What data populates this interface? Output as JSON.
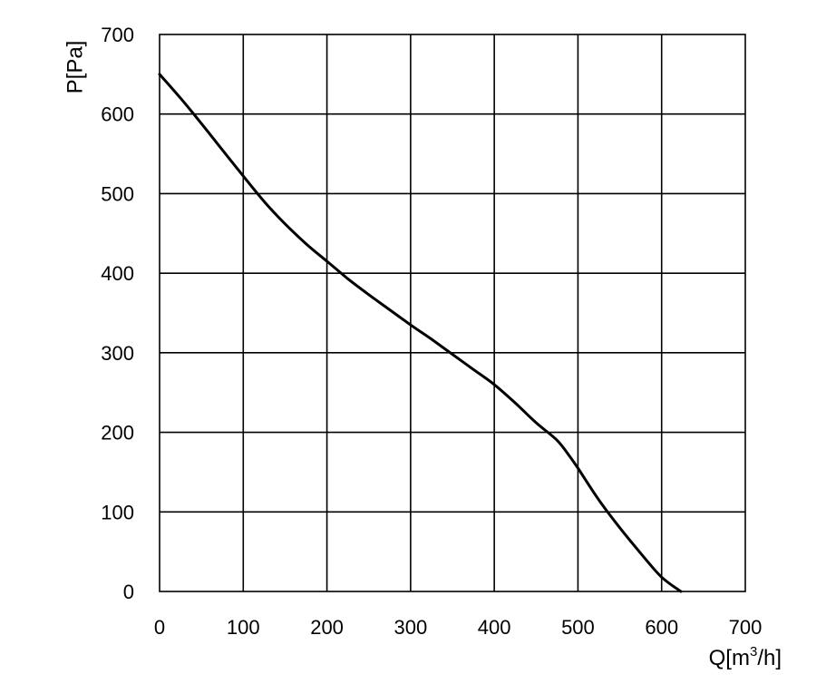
{
  "chart_data": {
    "type": "line",
    "xlabel_text": "Q[m",
    "xlabel_sup": "3",
    "xlabel_tail": "/h]",
    "ylabel": "P[Pa]",
    "xlim": [
      0,
      700
    ],
    "ylim": [
      0,
      700
    ],
    "xticks": [
      "0",
      "100",
      "200",
      "300",
      "400",
      "500",
      "600",
      "700"
    ],
    "yticks": [
      "0",
      "100",
      "200",
      "300",
      "400",
      "500",
      "600",
      "700"
    ],
    "grid": true,
    "series": [
      {
        "x": [
          0,
          25,
          50,
          75,
          100,
          125,
          150,
          175,
          200,
          225,
          250,
          275,
          300,
          325,
          350,
          375,
          400,
          425,
          450,
          475,
          490,
          500,
          525,
          550,
          575,
          600,
          623
        ],
        "y": [
          650,
          620,
          588,
          555,
          522,
          490,
          462,
          437,
          415,
          393,
          373,
          354,
          335,
          317,
          298,
          279,
          260,
          237,
          212,
          190,
          170,
          155,
          115,
          80,
          48,
          18,
          0
        ]
      }
    ]
  }
}
